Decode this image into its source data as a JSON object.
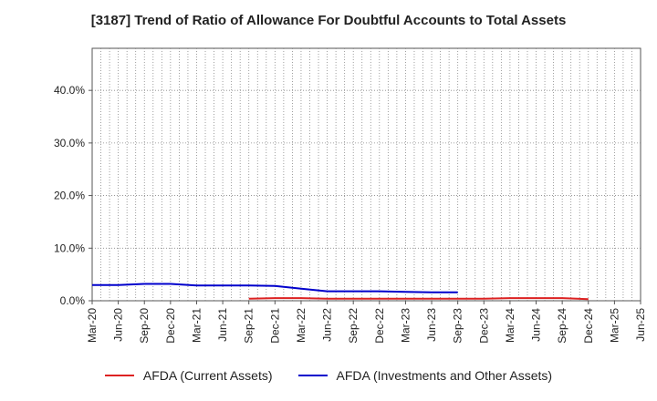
{
  "chart_data": {
    "type": "line",
    "title": "[3187]  Trend of Ratio of Allowance For Doubtful Accounts to Total Assets",
    "xlabel": "",
    "ylabel": "",
    "ylim": [
      0,
      48
    ],
    "yticks": [
      0,
      10,
      20,
      30,
      40
    ],
    "ytick_labels": [
      "0.0%",
      "10.0%",
      "20.0%",
      "30.0%",
      "40.0%"
    ],
    "x_tick_labels": [
      "Mar-20",
      "Jun-20",
      "Sep-20",
      "Dec-20",
      "Mar-21",
      "Jun-21",
      "Sep-21",
      "Dec-21",
      "Mar-22",
      "Jun-22",
      "Sep-22",
      "Dec-22",
      "Mar-23",
      "Jun-23",
      "Sep-23",
      "Dec-23",
      "Mar-24",
      "Jun-24",
      "Sep-24",
      "Dec-24",
      "Mar-25",
      "Jun-25"
    ],
    "grid": true,
    "legend_position": "bottom",
    "series": [
      {
        "name": "AFDA (Current Assets)",
        "color": "#dd2222",
        "x": [
          "Sep-21",
          "Dec-21",
          "Mar-22",
          "Jun-22",
          "Sep-22",
          "Dec-22",
          "Mar-23",
          "Jun-23",
          "Sep-23",
          "Dec-23",
          "Mar-24",
          "Jun-24",
          "Sep-24",
          "Dec-24"
        ],
        "values": [
          0.4,
          0.5,
          0.5,
          0.4,
          0.4,
          0.4,
          0.4,
          0.4,
          0.4,
          0.4,
          0.5,
          0.5,
          0.5,
          0.3
        ]
      },
      {
        "name": "AFDA (Investments and Other Assets)",
        "color": "#0000cc",
        "x": [
          "Mar-20",
          "Jun-20",
          "Sep-20",
          "Dec-20",
          "Mar-21",
          "Jun-21",
          "Sep-21",
          "Dec-21",
          "Mar-22",
          "Jun-22",
          "Sep-22",
          "Dec-22",
          "Mar-23",
          "Jun-23",
          "Sep-23"
        ],
        "values": [
          3.0,
          3.0,
          3.2,
          3.2,
          2.9,
          2.9,
          2.9,
          2.8,
          2.3,
          1.8,
          1.8,
          1.8,
          1.7,
          1.6,
          1.6
        ]
      }
    ]
  }
}
